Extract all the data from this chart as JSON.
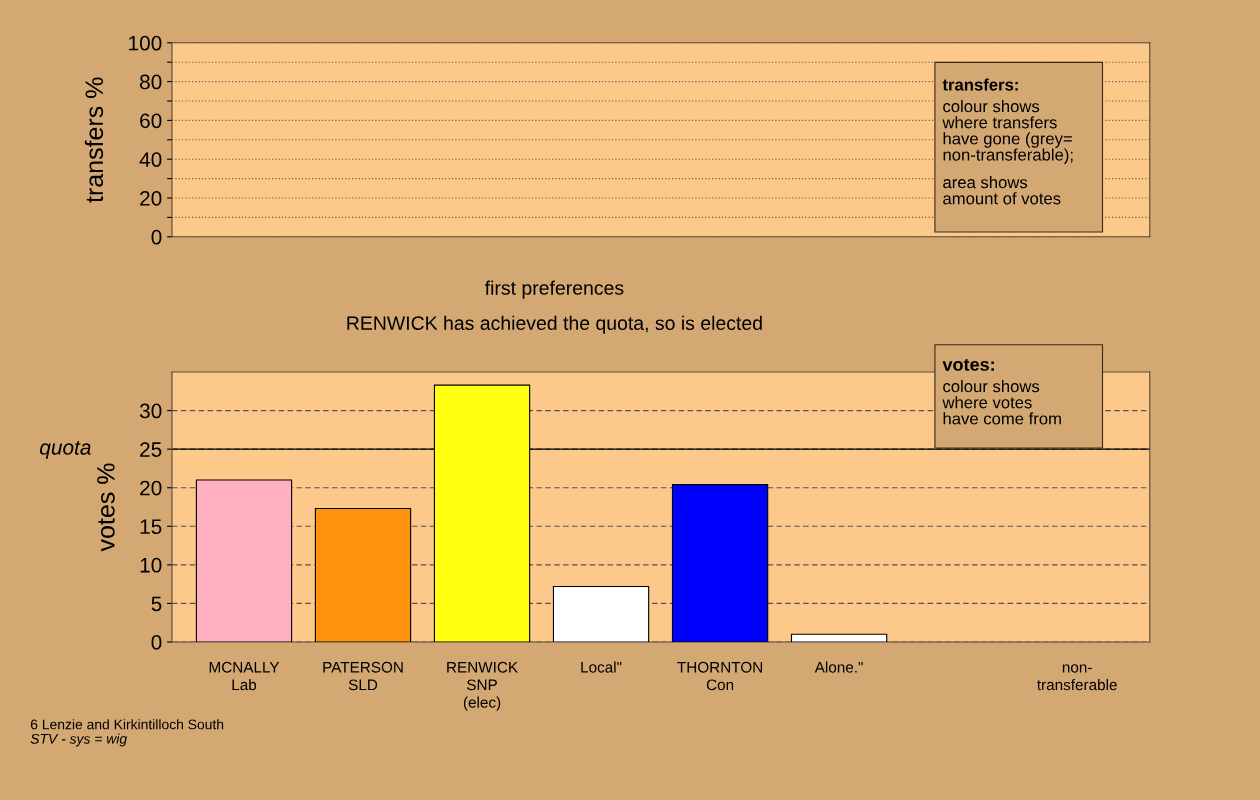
{
  "chart_data": [
    {
      "type": "bar",
      "ylabel": "transfers %",
      "categories": [
        null,
        null,
        null,
        null,
        null,
        null,
        null,
        null
      ],
      "values": [
        null,
        null,
        null,
        null,
        null,
        null,
        null,
        null
      ],
      "ylim": [
        0,
        100
      ],
      "yticks": [
        0,
        {
          "value": 10,
          "label": null
        },
        20,
        {
          "value": 30,
          "label": null
        },
        40,
        {
          "value": 50,
          "label": null
        },
        60,
        {
          "value": 70,
          "label": null
        },
        80,
        {
          "value": 90,
          "label": null
        },
        100
      ],
      "grid": "y",
      "tick_labels": "y",
      "annotations": [
        "transfers:",
        "colour shows\nwhere transfers\nhave gone (grey=\nnon-transferable);",
        "area shows\namount of votes"
      ]
    },
    {
      "type": "bar",
      "title": "first preferences",
      "subtitle": "RENWICK has achieved the quota, so is elected",
      "ylabel": "votes %",
      "categories": [
        "MCNALLY\nLab",
        "PATERSON\nSLD",
        "RENWICK\nSNP\n(elec)",
        "Local\"",
        "THORNTON\nCon",
        "Alone.\"",
        null,
        "non-\ntransferable"
      ],
      "values": [
        21.0,
        17.3,
        33.3,
        7.2,
        20.4,
        1.0,
        null,
        null
      ],
      "colors": [
        "#ffb0c0",
        "#ff930c",
        "#ffff10",
        "#ffffff",
        "#0000ff",
        "#ffffff",
        "#ffffff",
        "#b0b0b0"
      ],
      "ylim": [
        0,
        35
      ],
      "yticks": [
        0,
        5,
        10,
        15,
        20,
        25,
        30
      ],
      "grid": "y",
      "ref_lines": [
        {
          "axis": "y",
          "value": 25,
          "label": "quota",
          "color": "#000000",
          "line_style": "solid"
        }
      ],
      "annotations": [
        "votes:",
        "colour shows\nwhere votes\nhave come from",
        "6 Lenzie and Kirkintilloch South",
        "STV - sys = wig"
      ]
    }
  ]
}
